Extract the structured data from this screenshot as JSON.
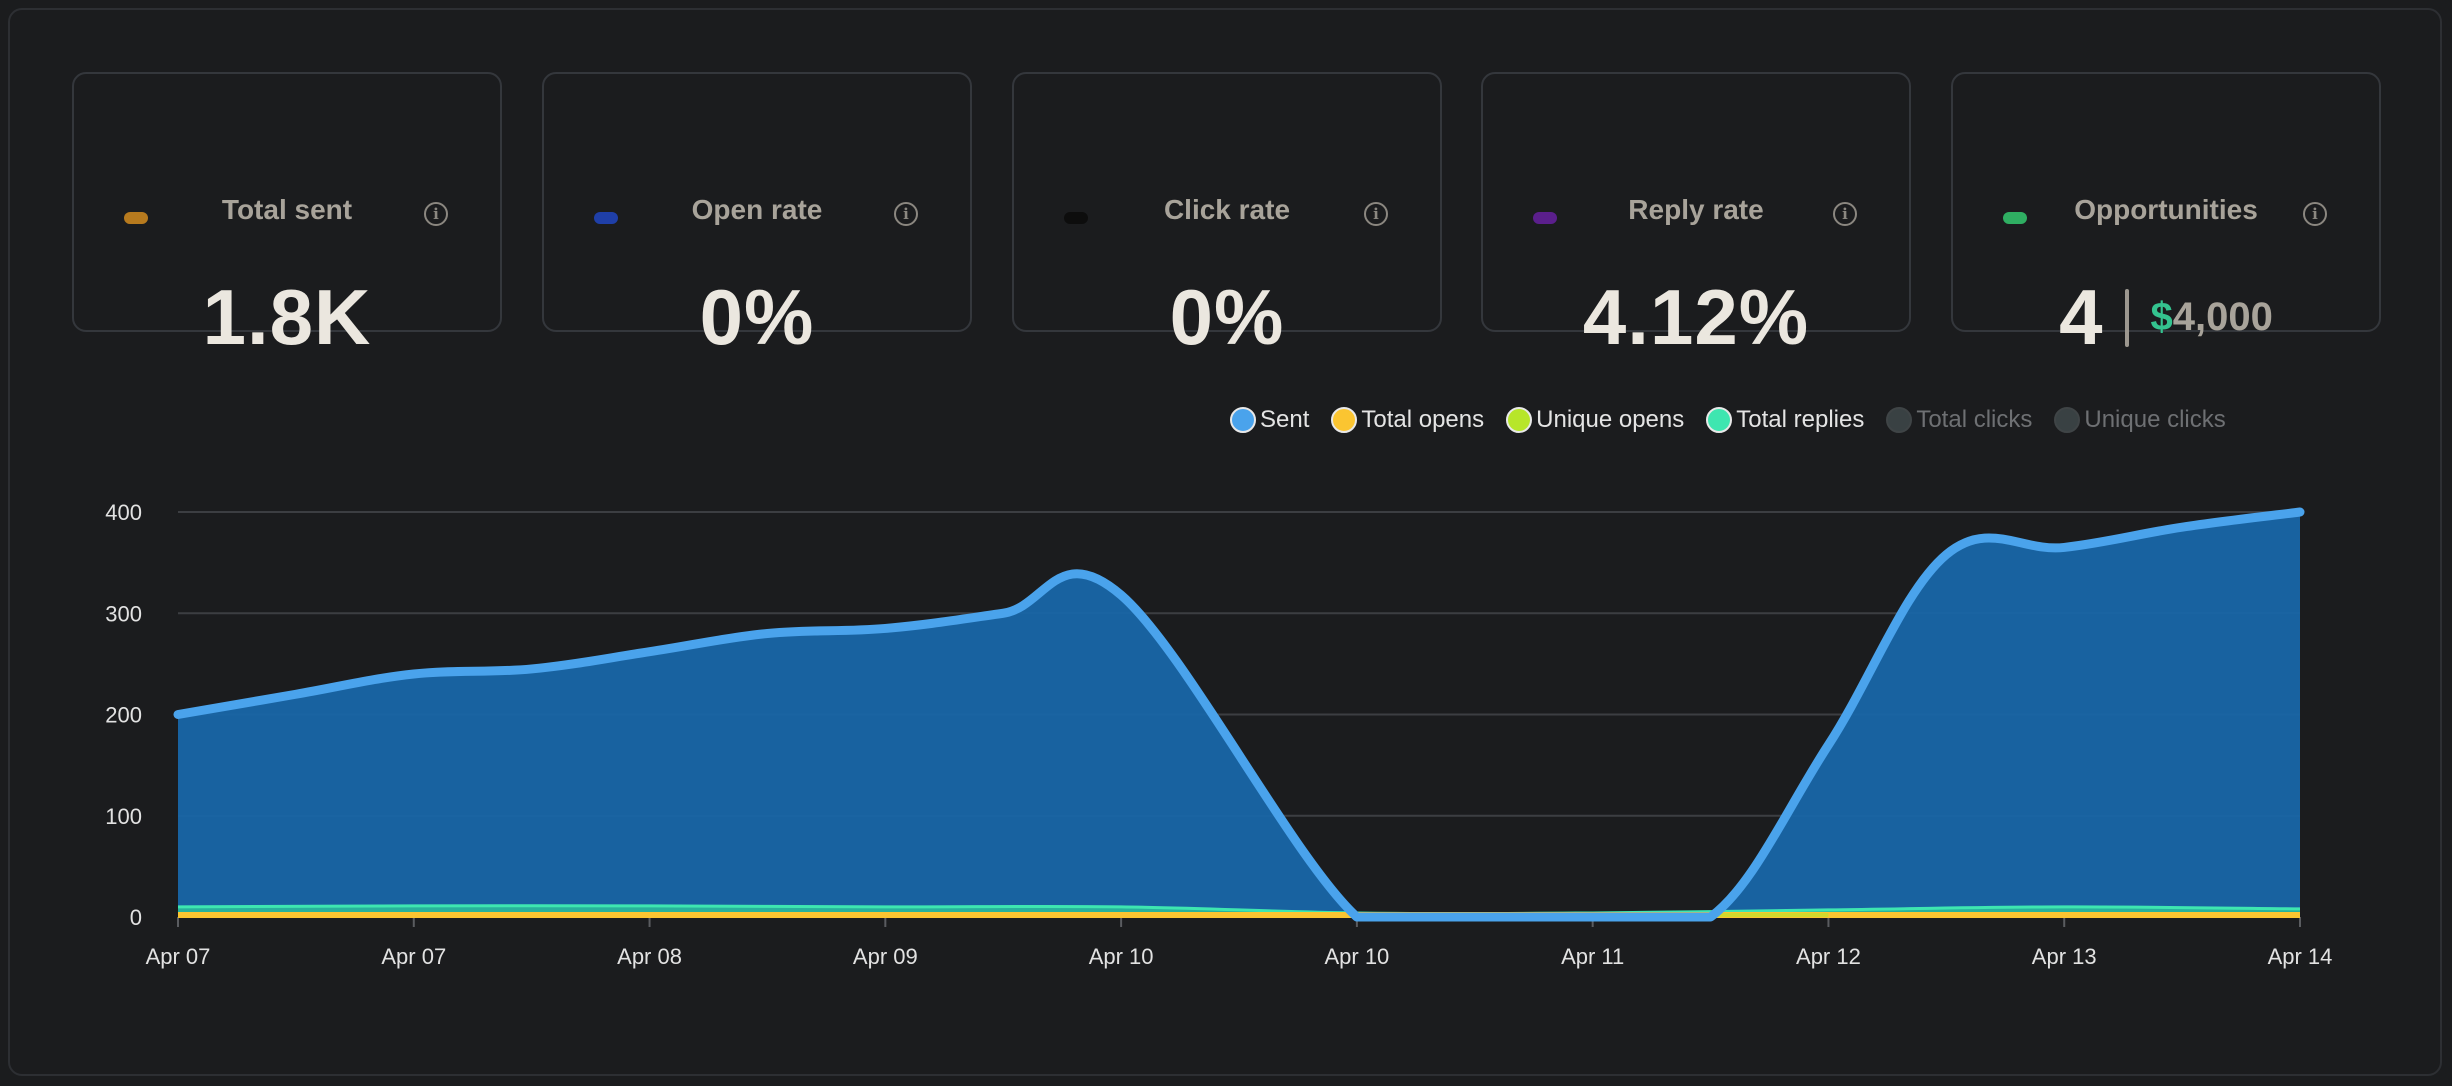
{
  "cards": [
    {
      "label": "Total sent",
      "value": "1.8K",
      "dot_color": "#b77a1e",
      "info_icon": "info-icon"
    },
    {
      "label": "Open rate",
      "value": "0%",
      "dot_color": "#1f3fa8",
      "info_icon": "info-icon"
    },
    {
      "label": "Click rate",
      "value": "0%",
      "dot_color": "#0d0d0d",
      "info_icon": "info-icon"
    },
    {
      "label": "Reply rate",
      "value": "4.12%",
      "dot_color": "#5b1f8c",
      "info_icon": "info-icon"
    },
    {
      "label": "Opportunities",
      "count": "4",
      "currency_symbol": "$",
      "amount": "4,000",
      "dot_color": "#2fae62",
      "info_icon": "info-icon"
    }
  ],
  "legend": [
    {
      "label": "Sent",
      "color": "#4aa3ec",
      "active": true
    },
    {
      "label": "Total opens",
      "color": "#fbc531",
      "active": true
    },
    {
      "label": "Unique opens",
      "color": "#b7e62a",
      "active": true
    },
    {
      "label": "Total replies",
      "color": "#3ee6b0",
      "active": true
    },
    {
      "label": "Total clicks",
      "color": "#394143",
      "active": false
    },
    {
      "label": "Unique clicks",
      "color": "#394143",
      "active": false
    }
  ],
  "chart_data": {
    "type": "area",
    "categories": [
      "Apr 07",
      "Apr 07",
      "Apr 08",
      "Apr 09",
      "Apr 10",
      "Apr 10",
      "Apr 11",
      "Apr 12",
      "Apr 13",
      "Apr 14"
    ],
    "ylim": [
      0,
      400
    ],
    "yticks": [
      0,
      100,
      200,
      300,
      400
    ],
    "grid": true,
    "legend_position": "top-right",
    "series": [
      {
        "name": "Sent",
        "color": "#4aa3ec",
        "fill": "#1866a8",
        "x": [
          0,
          0.5,
          1,
          1.5,
          2,
          2.5,
          3,
          3.5,
          4,
          5,
          5.5,
          6,
          6.5,
          7,
          7.5,
          8,
          8.5,
          9
        ],
        "values": [
          200,
          220,
          240,
          245,
          262,
          280,
          285,
          300,
          318,
          0,
          0,
          0,
          0,
          170,
          358,
          365,
          385,
          400
        ]
      },
      {
        "name": "Total opens",
        "color": "#fbc531",
        "x": [
          0,
          9
        ],
        "values": [
          0,
          0
        ]
      },
      {
        "name": "Unique opens",
        "color": "#b7e62a",
        "x": [
          0,
          9
        ],
        "values": [
          0,
          0
        ]
      },
      {
        "name": "Total replies",
        "color": "#3ee6b0",
        "x": [
          0,
          1,
          2,
          3,
          4,
          5,
          6,
          7,
          8,
          9
        ],
        "values": [
          10,
          11,
          11,
          10,
          10,
          4,
          4,
          7,
          10,
          8
        ]
      }
    ]
  }
}
